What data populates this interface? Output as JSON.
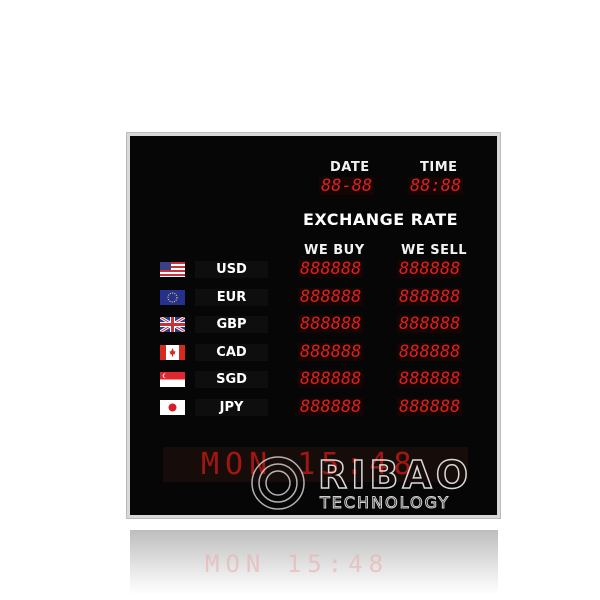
{
  "header": {
    "date_label": "DATE",
    "time_label": "TIME",
    "date_value": "88-88",
    "time_value": "88:88"
  },
  "title": "EXCHANGE RATE",
  "columns": {
    "buy": "WE BUY",
    "sell": "WE SELL"
  },
  "rows": [
    {
      "code": "USD",
      "flag": "us-flag-icon",
      "buy": "888888",
      "sell": "888888"
    },
    {
      "code": "EUR",
      "flag": "eu-flag-icon",
      "buy": "888888",
      "sell": "888888"
    },
    {
      "code": "GBP",
      "flag": "uk-flag-icon",
      "buy": "888888",
      "sell": "888888"
    },
    {
      "code": "CAD",
      "flag": "canada-flag-icon",
      "buy": "888888",
      "sell": "888888"
    },
    {
      "code": "SGD",
      "flag": "singapore-flag-icon",
      "buy": "888888",
      "sell": "888888"
    },
    {
      "code": "JPY",
      "flag": "japan-flag-icon",
      "buy": "888888",
      "sell": "888888"
    }
  ],
  "ticker": "MON 15:48",
  "watermark": {
    "brand": "RIBAO",
    "sub": "TECHNOLOGY"
  },
  "colors": {
    "led": "#e0211b",
    "board": "#060606",
    "frame": "#d8d8d8"
  }
}
